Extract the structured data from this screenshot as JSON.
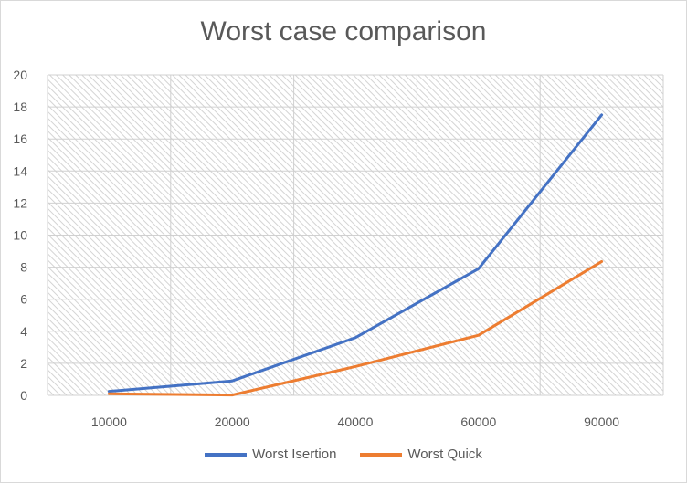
{
  "chart_data": {
    "type": "line",
    "title": "Worst case comparison",
    "xlabel": "",
    "ylabel": "",
    "categories": [
      "10000",
      "20000",
      "40000",
      "60000",
      "90000"
    ],
    "ylim": [
      0,
      20
    ],
    "yticks": [
      0,
      2,
      4,
      6,
      8,
      10,
      12,
      14,
      16,
      18,
      20
    ],
    "grid": true,
    "legend": "bottom",
    "series": [
      {
        "name": "Worst Isertion",
        "color": "#4472c4",
        "values": [
          0.25,
          0.9,
          3.6,
          7.9,
          17.5
        ]
      },
      {
        "name": "Worst Quick",
        "color": "#ed7d31",
        "values": [
          0.1,
          0.02,
          1.8,
          3.75,
          8.35
        ]
      }
    ]
  }
}
